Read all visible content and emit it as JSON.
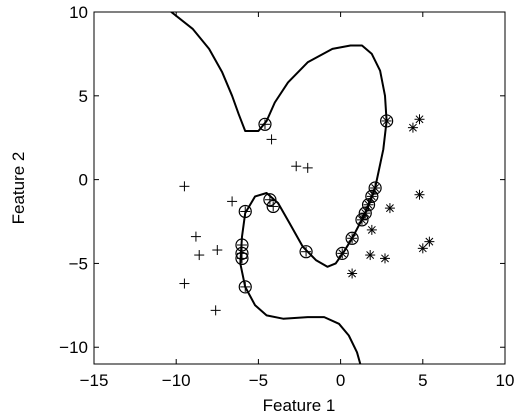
{
  "chart_data": {
    "type": "scatter",
    "title": "",
    "xlabel": "Feature 1",
    "ylabel": "Feature 2",
    "xlim": [
      -15,
      10
    ],
    "ylim": [
      -11,
      10
    ],
    "xticks": [
      -15,
      -10,
      -5,
      0,
      5,
      10
    ],
    "yticks": [
      -10,
      -5,
      0,
      5,
      10
    ],
    "xtick_labels": [
      "−15",
      "−10",
      "−5",
      "0",
      "5",
      "10"
    ],
    "ytick_labels": [
      "−10",
      "−5",
      "0",
      "5",
      "10"
    ],
    "grid": false,
    "series": [
      {
        "marker": "plus",
        "points": [
          [
            -4.2,
            2.4
          ],
          [
            -9.5,
            -0.4
          ],
          [
            -2.7,
            0.8
          ],
          [
            -2.0,
            0.7
          ],
          [
            -6.6,
            -1.3
          ],
          [
            -8.8,
            -3.4
          ],
          [
            -7.5,
            -4.2
          ],
          [
            -8.6,
            -4.5
          ],
          [
            -9.5,
            -6.2
          ],
          [
            -7.6,
            -7.8
          ]
        ]
      },
      {
        "marker": "star",
        "points": [
          [
            4.8,
            3.6
          ],
          [
            4.4,
            3.1
          ],
          [
            4.8,
            -0.9
          ],
          [
            3.0,
            -1.7
          ],
          [
            1.9,
            -3.0
          ],
          [
            5.4,
            -3.7
          ],
          [
            5.0,
            -4.1
          ],
          [
            1.8,
            -4.5
          ],
          [
            2.7,
            -4.7
          ],
          [
            0.7,
            -5.6
          ]
        ]
      },
      {
        "marker": "plus",
        "circled": true,
        "points": [
          [
            -4.6,
            3.3
          ],
          [
            -4.3,
            -1.2
          ],
          [
            -4.1,
            -1.6
          ],
          [
            -5.8,
            -1.9
          ],
          [
            -2.1,
            -4.3
          ],
          [
            -6.0,
            -3.9
          ],
          [
            -6.0,
            -4.4
          ],
          [
            -6.0,
            -4.7
          ],
          [
            -5.8,
            -6.4
          ]
        ]
      },
      {
        "marker": "star",
        "circled": true,
        "points": [
          [
            2.8,
            3.5
          ],
          [
            2.1,
            -0.5
          ],
          [
            1.9,
            -1.0
          ],
          [
            1.7,
            -1.5
          ],
          [
            1.5,
            -2.0
          ],
          [
            1.3,
            -2.4
          ],
          [
            0.7,
            -3.5
          ],
          [
            0.1,
            -4.4
          ]
        ]
      }
    ],
    "decision_boundary": [
      [
        [
          -10.3,
          10.0
        ],
        [
          -9.0,
          9.0
        ],
        [
          -8.0,
          7.8
        ],
        [
          -7.2,
          6.4
        ],
        [
          -6.6,
          5.0
        ],
        [
          -6.2,
          3.9
        ],
        [
          -5.8,
          2.9
        ],
        [
          -5.0,
          2.9
        ],
        [
          -4.5,
          3.5
        ],
        [
          -4.0,
          4.6
        ],
        [
          -3.2,
          5.8
        ],
        [
          -2.0,
          7.0
        ],
        [
          -0.5,
          7.8
        ],
        [
          0.6,
          8.0
        ],
        [
          1.3,
          8.0
        ],
        [
          1.9,
          7.5
        ],
        [
          2.4,
          6.5
        ],
        [
          2.7,
          5.0
        ],
        [
          2.8,
          3.5
        ],
        [
          2.6,
          1.8
        ],
        [
          2.1,
          -0.5
        ],
        [
          1.5,
          -2.0
        ],
        [
          0.7,
          -3.5
        ],
        [
          0.2,
          -4.3
        ],
        [
          -0.3,
          -5.0
        ],
        [
          -0.8,
          -5.2
        ],
        [
          -1.5,
          -4.8
        ],
        [
          -2.3,
          -4.0
        ],
        [
          -3.1,
          -2.6
        ],
        [
          -3.8,
          -1.4
        ],
        [
          -4.5,
          -0.8
        ],
        [
          -5.2,
          -1.0
        ],
        [
          -5.8,
          -2.0
        ],
        [
          -6.0,
          -3.4
        ],
        [
          -6.1,
          -5.0
        ],
        [
          -5.8,
          -6.4
        ],
        [
          -5.2,
          -7.5
        ],
        [
          -4.5,
          -8.1
        ],
        [
          -3.5,
          -8.3
        ],
        [
          -2.0,
          -8.2
        ],
        [
          -1.0,
          -8.2
        ],
        [
          -0.1,
          -8.6
        ],
        [
          0.5,
          -9.3
        ],
        [
          1.0,
          -10.3
        ],
        [
          1.2,
          -11.0
        ]
      ]
    ]
  }
}
